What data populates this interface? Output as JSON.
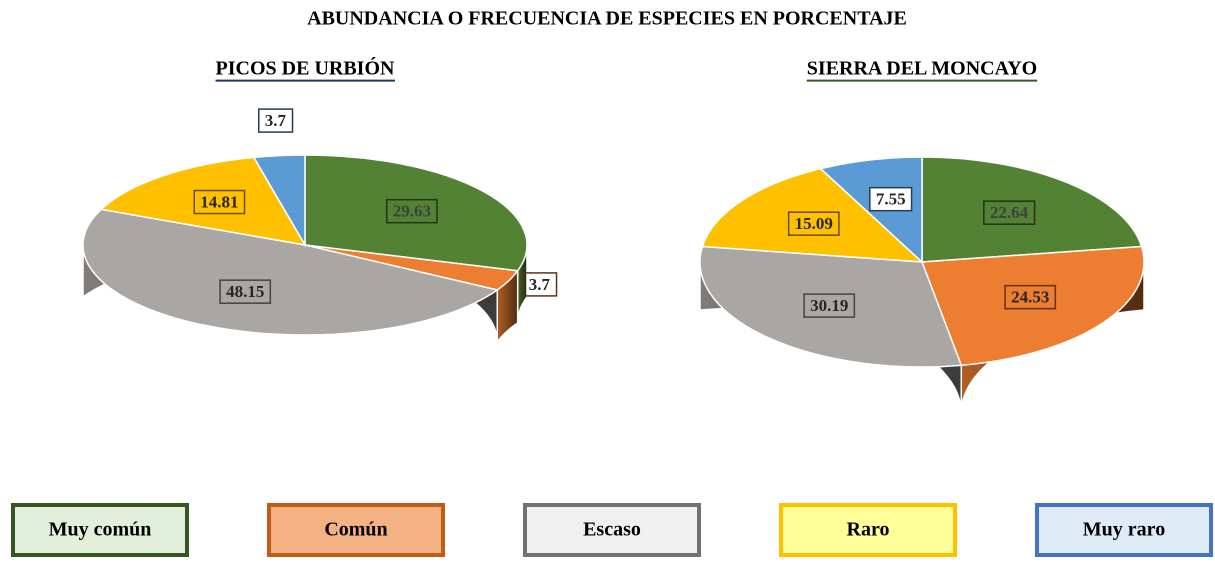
{
  "title": "ABUNDANCIA O FRECUENCIA DE ESPECIES EN PORCENTAJE",
  "legend": {
    "labels": [
      "Muy común",
      "Común",
      "Escaso",
      "Raro",
      "Muy raro"
    ],
    "colors": [
      "#548235",
      "#ed7d31",
      "#aaa6a4",
      "#ffc000",
      "#5b9bd5"
    ],
    "fills": [
      "#e2efda",
      "#f4b183",
      "#f0f0f0",
      "#ffff99",
      "#deebf7"
    ],
    "borders": [
      "#375623",
      "#c55a11",
      "#767171",
      "#ffc000",
      "#4472c4"
    ]
  },
  "chart_data": [
    {
      "type": "pie",
      "title": "PICOS DE URBIÓN",
      "values": [
        29.63,
        3.7,
        48.15,
        14.81,
        3.7
      ]
    },
    {
      "type": "pie",
      "title": "SIERRA DEL MONCAYO",
      "values": [
        22.64,
        24.53,
        30.19,
        15.09,
        7.55
      ]
    }
  ]
}
